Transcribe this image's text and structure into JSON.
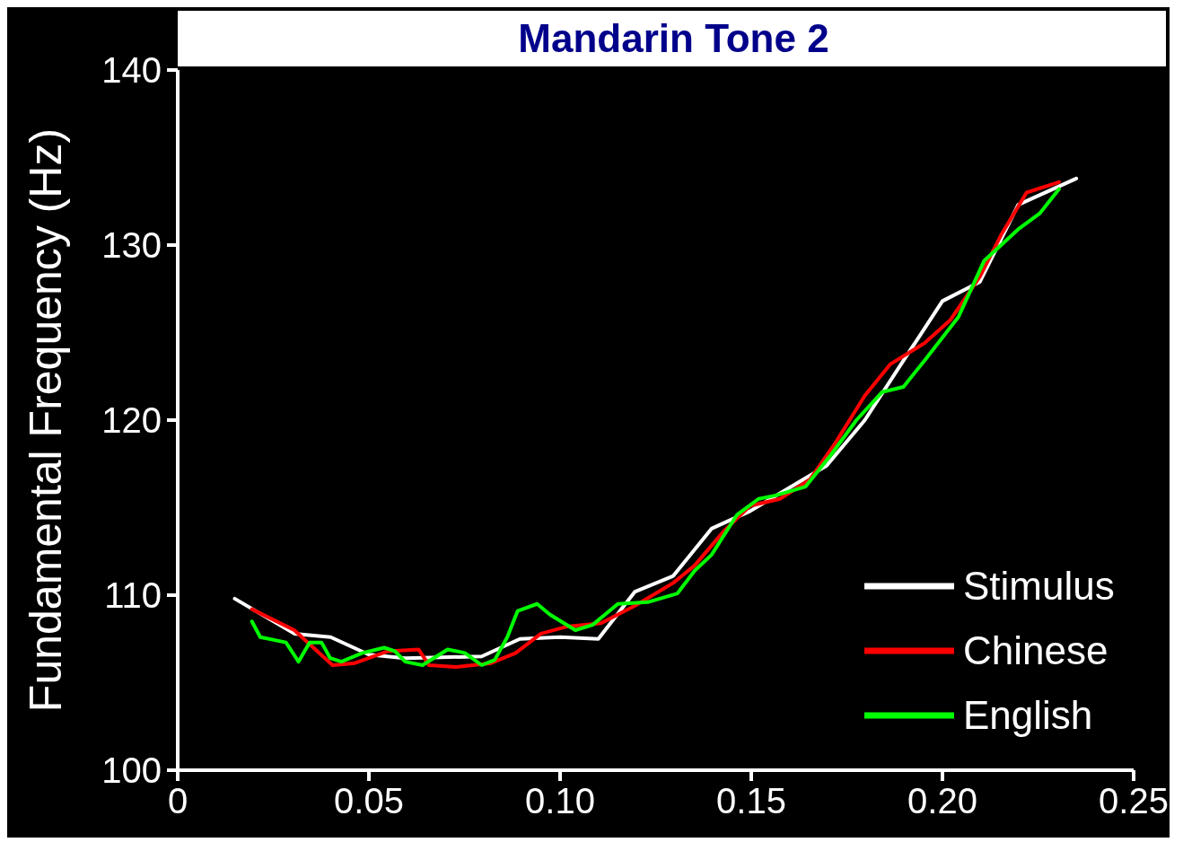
{
  "chart_data": {
    "type": "line",
    "title": "Mandarin Tone 2",
    "ylabel": "Fundamental Frequency (Hz)",
    "xlim": [
      0,
      0.25
    ],
    "xticks": [
      0,
      0.05,
      {
        "value": 0.1,
        "label": "0.10"
      },
      0.15,
      {
        "value": 0.2,
        "label": "0.20"
      },
      0.25
    ],
    "ylim": [
      100,
      140
    ],
    "yticks": [
      100,
      110,
      120,
      130,
      140
    ],
    "grid": false,
    "legend": "bottom right",
    "marker": "none",
    "line_style": "solid",
    "series": [
      {
        "name": "Stimulus",
        "color": "#ffffff",
        "x": [
          0.0149,
          0.0305,
          0.04,
          0.05,
          0.0595,
          0.0795,
          0.0895,
          0.1,
          0.11,
          0.1196,
          0.1296,
          0.1396,
          0.1497,
          0.1597,
          0.1697,
          0.1797,
          0.1898,
          0.2,
          0.2098,
          0.2198,
          0.235
        ],
        "values": [
          109.8,
          107.8,
          107.6,
          106.6,
          106.4,
          106.5,
          107.5,
          107.6,
          107.5,
          110.2,
          111.1,
          113.8,
          114.8,
          116.1,
          117.4,
          120.0,
          123.4,
          126.8,
          127.9,
          132.3,
          133.8
        ]
      },
      {
        "name": "Chinese",
        "color": "#ff0000",
        "x": [
          0.0194,
          0.0305,
          0.036,
          0.0405,
          0.046,
          0.055,
          0.063,
          0.0657,
          0.0728,
          0.0817,
          0.0884,
          0.095,
          0.1017,
          0.1107,
          0.1196,
          0.1296,
          0.1352,
          0.143,
          0.1497,
          0.1575,
          0.1653,
          0.172,
          0.1797,
          0.1864,
          0.1953,
          0.202,
          0.2098,
          0.2154,
          0.222,
          0.2305
        ],
        "values": [
          109.2,
          108.0,
          106.9,
          106.0,
          106.1,
          106.8,
          106.9,
          106.0,
          105.9,
          106.1,
          106.7,
          107.8,
          108.2,
          108.4,
          109.4,
          110.7,
          111.7,
          113.7,
          115.1,
          115.5,
          116.6,
          118.7,
          121.4,
          123.2,
          124.4,
          125.7,
          128.2,
          130.6,
          133.0,
          133.6
        ]
      },
      {
        "name": "English",
        "color": "#00ff00",
        "x": [
          0.0194,
          0.0216,
          0.0283,
          0.0316,
          0.0345,
          0.0376,
          0.0399,
          0.0428,
          0.0483,
          0.054,
          0.0568,
          0.0595,
          0.064,
          0.0706,
          0.0751,
          0.0795,
          0.0829,
          0.0862,
          0.0889,
          0.094,
          0.0973,
          0.104,
          0.1085,
          0.1151,
          0.1229,
          0.1307,
          0.1352,
          0.1396,
          0.1463,
          0.1519,
          0.1564,
          0.1642,
          0.1708,
          0.1775,
          0.1842,
          0.1898,
          0.1953,
          0.2042,
          0.2109,
          0.2198,
          0.2254,
          0.2305
        ],
        "values": [
          108.5,
          107.6,
          107.3,
          106.2,
          107.3,
          107.3,
          106.4,
          106.2,
          106.7,
          107.0,
          106.8,
          106.2,
          106.0,
          106.9,
          106.7,
          106.0,
          106.3,
          107.6,
          109.1,
          109.5,
          108.9,
          108.0,
          108.3,
          109.5,
          109.6,
          110.1,
          111.4,
          112.3,
          114.6,
          115.5,
          115.7,
          116.2,
          118.0,
          120.0,
          121.6,
          121.9,
          123.4,
          125.9,
          129.1,
          130.9,
          131.8,
          133.2
        ]
      }
    ]
  }
}
